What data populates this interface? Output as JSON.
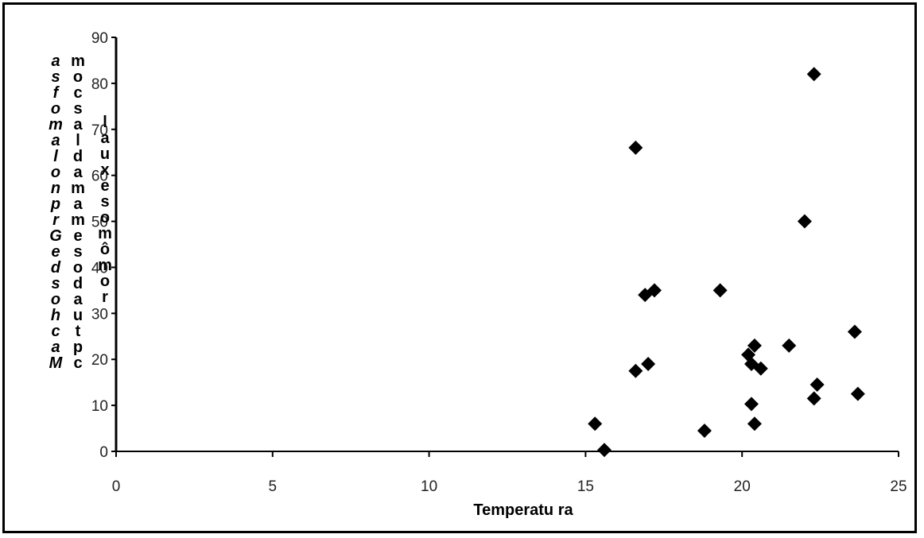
{
  "chart_data": {
    "type": "scatter",
    "xlabel": "Temperatu ra",
    "ylabel_lines": [
      "a s f o m a l o n p r G e d s o h c a M",
      "m o c s a l d a m a m e s o d a u t p c",
      "l a u x e s o m ô m o r"
    ],
    "xlim": [
      0,
      25
    ],
    "ylim": [
      0,
      90
    ],
    "x_ticks": [
      "0",
      "5",
      "10",
      "15",
      "20",
      "25"
    ],
    "y_ticks": [
      "0",
      "10",
      "20",
      "30",
      "40",
      "50",
      "60",
      "70",
      "80",
      "90"
    ],
    "marker": "diamond",
    "color": "#000000",
    "points": [
      {
        "x": 15.3,
        "y": 6
      },
      {
        "x": 15.6,
        "y": 0.3
      },
      {
        "x": 16.6,
        "y": 17.5
      },
      {
        "x": 16.6,
        "y": 66
      },
      {
        "x": 16.9,
        "y": 34
      },
      {
        "x": 17.0,
        "y": 19
      },
      {
        "x": 17.2,
        "y": 35
      },
      {
        "x": 18.8,
        "y": 4.5
      },
      {
        "x": 19.3,
        "y": 35
      },
      {
        "x": 20.2,
        "y": 21
      },
      {
        "x": 20.3,
        "y": 19
      },
      {
        "x": 20.3,
        "y": 10.3
      },
      {
        "x": 20.4,
        "y": 6
      },
      {
        "x": 20.4,
        "y": 23
      },
      {
        "x": 20.6,
        "y": 18
      },
      {
        "x": 21.5,
        "y": 23
      },
      {
        "x": 22.0,
        "y": 50
      },
      {
        "x": 22.3,
        "y": 82
      },
      {
        "x": 22.3,
        "y": 11.5
      },
      {
        "x": 22.4,
        "y": 14.5
      },
      {
        "x": 23.6,
        "y": 26
      },
      {
        "x": 23.7,
        "y": 12.5
      }
    ]
  }
}
